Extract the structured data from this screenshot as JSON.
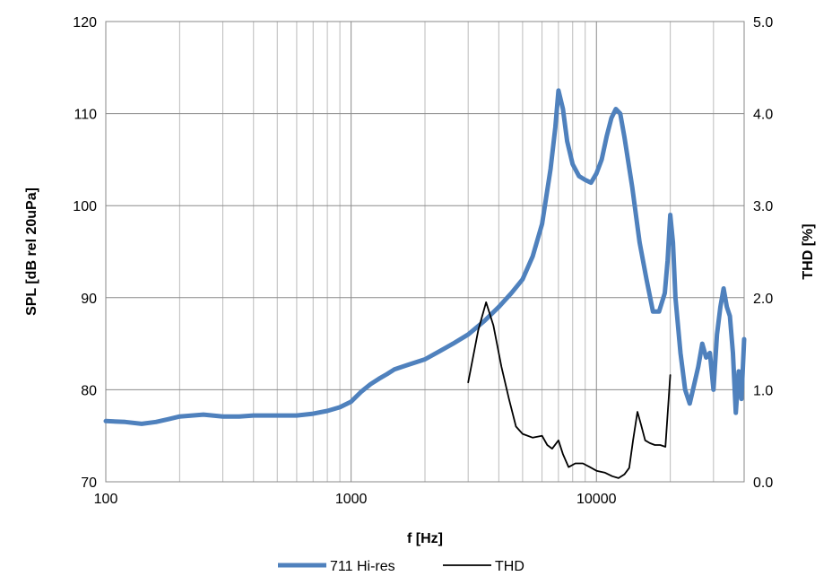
{
  "chart_data": {
    "type": "line",
    "x_scale": "log",
    "xlabel": "f [Hz]",
    "ylabel_left": "SPL [dB rel 20uPa]",
    "ylabel_right": "THD [%]",
    "xlim": [
      100,
      40000
    ],
    "ylim_left": [
      70,
      120
    ],
    "ylim_right": [
      0.0,
      5.0
    ],
    "grid": true,
    "x_ticks": [
      100,
      1000,
      10000
    ],
    "x_tick_labels": [
      "100",
      "1000",
      "10000"
    ],
    "y_left_ticks": [
      70,
      80,
      90,
      100,
      110,
      120
    ],
    "y_left_tick_labels": [
      "70",
      "80",
      "90",
      "100",
      "110",
      "120"
    ],
    "y_right_ticks": [
      0,
      1,
      2,
      3,
      4,
      5
    ],
    "y_right_tick_labels": [
      "0.0",
      "1.0",
      "2.0",
      "3.0",
      "4.0",
      "5.0"
    ],
    "legend_position": "bottom",
    "series": [
      {
        "name": "711 Hi-res",
        "axis": "left",
        "color": "#4F81BD",
        "points": [
          [
            100,
            76.6
          ],
          [
            120,
            76.5
          ],
          [
            140,
            76.3
          ],
          [
            160,
            76.5
          ],
          [
            180,
            76.8
          ],
          [
            200,
            77.1
          ],
          [
            250,
            77.3
          ],
          [
            300,
            77.1
          ],
          [
            350,
            77.1
          ],
          [
            400,
            77.2
          ],
          [
            500,
            77.2
          ],
          [
            600,
            77.2
          ],
          [
            700,
            77.4
          ],
          [
            800,
            77.7
          ],
          [
            900,
            78.1
          ],
          [
            1000,
            78.7
          ],
          [
            1100,
            79.8
          ],
          [
            1200,
            80.6
          ],
          [
            1300,
            81.2
          ],
          [
            1400,
            81.7
          ],
          [
            1500,
            82.2
          ],
          [
            1700,
            82.7
          ],
          [
            2000,
            83.3
          ],
          [
            2300,
            84.2
          ],
          [
            2600,
            85.0
          ],
          [
            3000,
            86.0
          ],
          [
            3500,
            87.5
          ],
          [
            4000,
            89.0
          ],
          [
            4500,
            90.5
          ],
          [
            5000,
            92.0
          ],
          [
            5500,
            94.5
          ],
          [
            6000,
            98.0
          ],
          [
            6500,
            104.0
          ],
          [
            6800,
            108.5
          ],
          [
            7000,
            112.5
          ],
          [
            7300,
            110.5
          ],
          [
            7600,
            107.0
          ],
          [
            8000,
            104.5
          ],
          [
            8500,
            103.2
          ],
          [
            9000,
            102.8
          ],
          [
            9500,
            102.5
          ],
          [
            10000,
            103.5
          ],
          [
            10500,
            105.0
          ],
          [
            11000,
            107.5
          ],
          [
            11500,
            109.5
          ],
          [
            12000,
            110.5
          ],
          [
            12500,
            110.0
          ],
          [
            13000,
            107.5
          ],
          [
            14000,
            102.0
          ],
          [
            15000,
            96.0
          ],
          [
            16000,
            92.0
          ],
          [
            17000,
            88.5
          ],
          [
            18000,
            88.5
          ],
          [
            19000,
            90.5
          ],
          [
            19500,
            94.0
          ],
          [
            20000,
            99.0
          ],
          [
            20500,
            96.0
          ],
          [
            21000,
            90.0
          ],
          [
            22000,
            84.0
          ],
          [
            23000,
            80.0
          ],
          [
            24000,
            78.5
          ],
          [
            25000,
            80.5
          ],
          [
            26000,
            82.5
          ],
          [
            27000,
            85.0
          ],
          [
            28000,
            83.5
          ],
          [
            29000,
            84.0
          ],
          [
            30000,
            80.0
          ],
          [
            31000,
            86.0
          ],
          [
            32000,
            89.0
          ],
          [
            33000,
            91.0
          ],
          [
            34000,
            89.0
          ],
          [
            35000,
            88.0
          ],
          [
            36000,
            84.0
          ],
          [
            37000,
            77.5
          ],
          [
            38000,
            82.0
          ],
          [
            39000,
            79.0
          ],
          [
            40000,
            85.5
          ]
        ]
      },
      {
        "name": "THD",
        "axis": "right",
        "color": "#000000",
        "points": [
          [
            3000,
            1.08
          ],
          [
            3300,
            1.65
          ],
          [
            3550,
            1.95
          ],
          [
            3800,
            1.7
          ],
          [
            4100,
            1.25
          ],
          [
            4400,
            0.9
          ],
          [
            4700,
            0.6
          ],
          [
            5000,
            0.52
          ],
          [
            5500,
            0.48
          ],
          [
            6000,
            0.5
          ],
          [
            6300,
            0.4
          ],
          [
            6600,
            0.36
          ],
          [
            7000,
            0.45
          ],
          [
            7300,
            0.3
          ],
          [
            7700,
            0.16
          ],
          [
            8200,
            0.2
          ],
          [
            8800,
            0.2
          ],
          [
            9400,
            0.16
          ],
          [
            10000,
            0.12
          ],
          [
            10800,
            0.1
          ],
          [
            11600,
            0.06
          ],
          [
            12300,
            0.04
          ],
          [
            13000,
            0.08
          ],
          [
            13600,
            0.15
          ],
          [
            14100,
            0.45
          ],
          [
            14700,
            0.76
          ],
          [
            15200,
            0.62
          ],
          [
            15800,
            0.45
          ],
          [
            16500,
            0.42
          ],
          [
            17300,
            0.4
          ],
          [
            18200,
            0.4
          ],
          [
            19100,
            0.38
          ],
          [
            20000,
            1.16
          ]
        ]
      }
    ]
  }
}
